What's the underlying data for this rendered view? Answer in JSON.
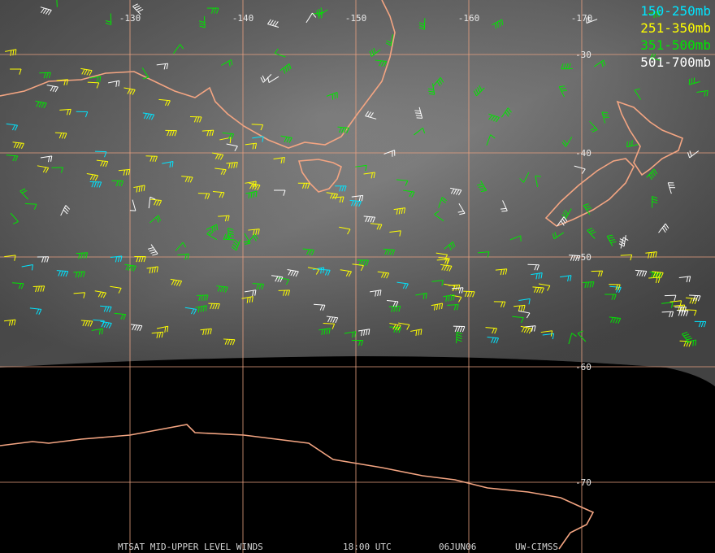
{
  "legend": [
    {
      "label": "150-250mb",
      "color": "#00e5ff"
    },
    {
      "label": "251-350mb",
      "color": "#ffff00"
    },
    {
      "label": "351-500mb",
      "color": "#00e600"
    },
    {
      "label": "501-700mb",
      "color": "#ffffff"
    }
  ],
  "grid": {
    "longitudes": [
      -130,
      -140,
      -150,
      -160,
      -170
    ],
    "latitudes": [
      -30,
      -40,
      -50,
      -60,
      -70
    ]
  },
  "footer": [
    "MTSAT MID-UPPER LEVEL WINDS",
    "18:00 UTC",
    "06JUN06",
    "UW-CIMSS"
  ]
}
